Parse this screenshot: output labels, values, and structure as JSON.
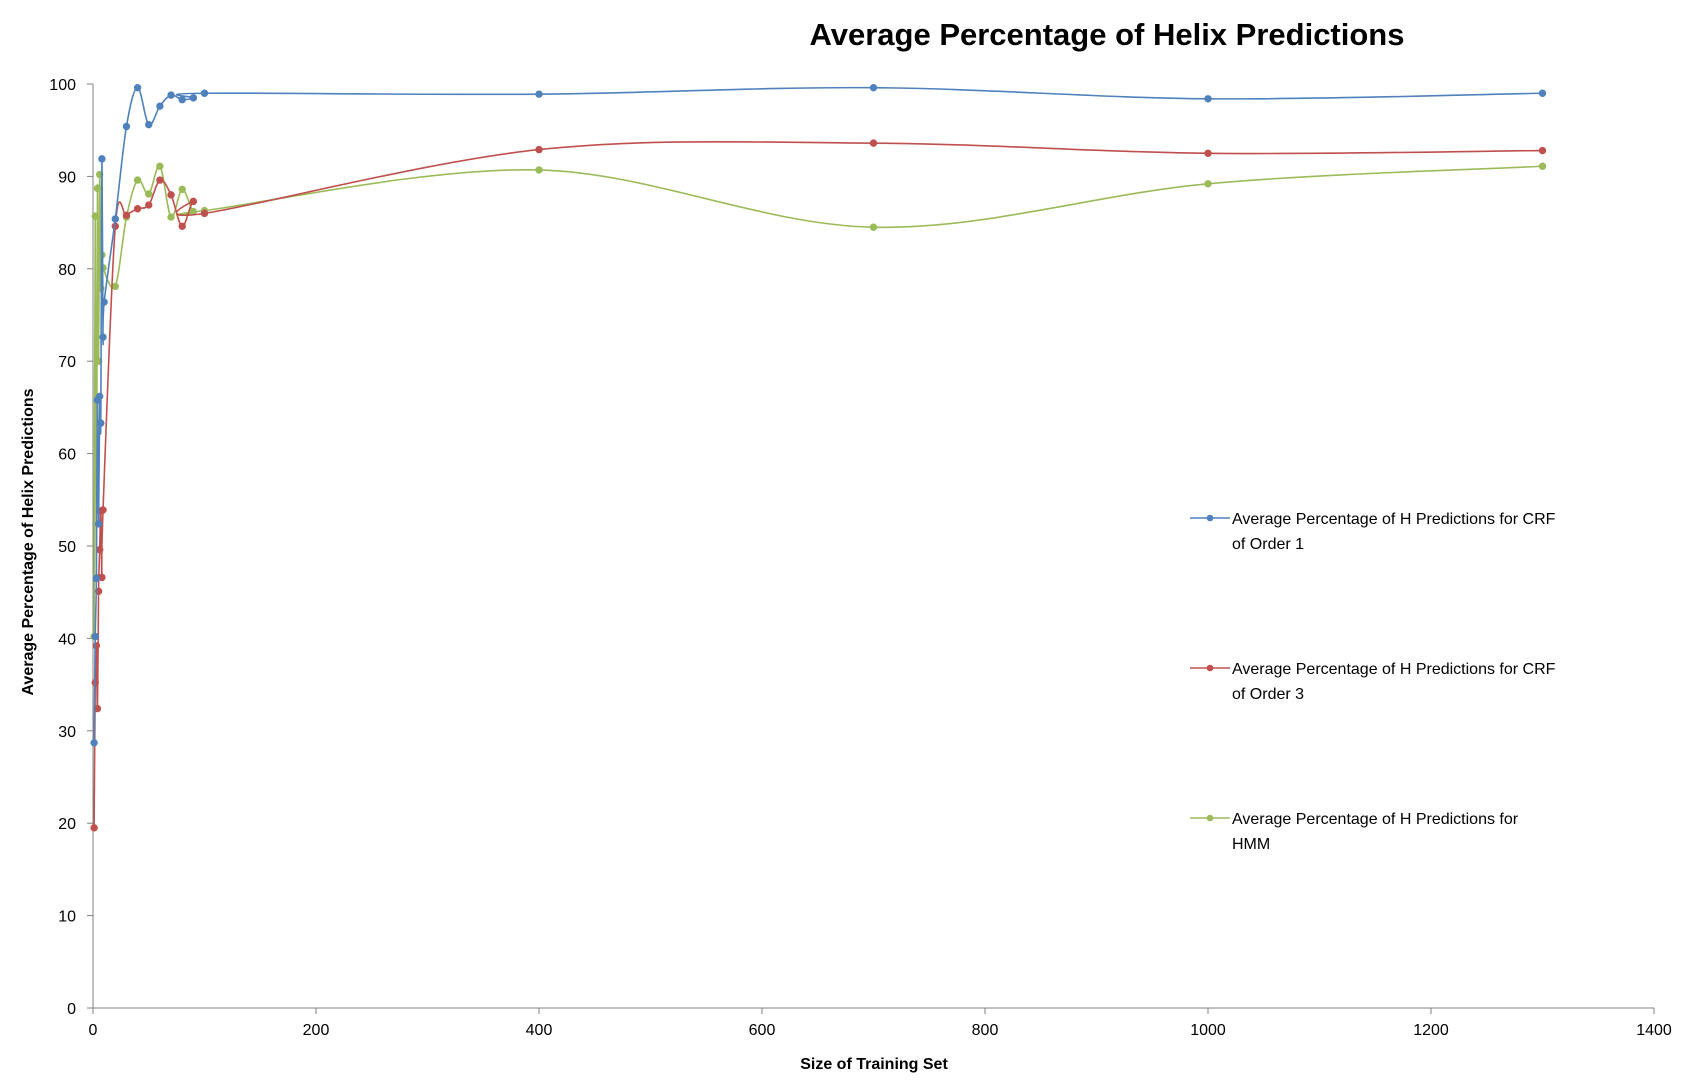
{
  "chart_data": {
    "type": "line",
    "title": "Average Percentage of Helix Predictions",
    "xlabel": "Size of Training Set",
    "ylabel": "Average Percentage of Helix Predictions",
    "xlim": [
      0,
      1400
    ],
    "ylim": [
      0,
      100
    ],
    "xticks": [
      "0",
      "200",
      "400",
      "600",
      "800",
      "1000",
      "1200",
      "1400"
    ],
    "yticks": [
      "0",
      "10",
      "20",
      "30",
      "40",
      "50",
      "60",
      "70",
      "80",
      "90",
      "100"
    ],
    "grid": false,
    "smooth": true,
    "legend_position": "right",
    "series": [
      {
        "name": "Average Percentage of H Predictions for CRF of Order 1",
        "name_lines": [
          "Average Percentage of H Predictions for CRF",
          "of Order 1"
        ],
        "color": "#4f81bd",
        "points": [
          [
            1,
            28.7
          ],
          [
            2,
            40.2
          ],
          [
            3,
            46.5
          ],
          [
            4,
            65.8
          ],
          [
            5,
            52.4
          ],
          [
            6,
            66.2
          ],
          [
            7,
            63.3
          ],
          [
            8,
            91.9
          ],
          [
            9,
            72.6
          ],
          [
            10,
            76.4
          ],
          [
            20,
            85.4
          ],
          [
            30,
            95.4
          ],
          [
            40,
            99.6
          ],
          [
            50,
            95.6
          ],
          [
            60,
            97.6
          ],
          [
            70,
            98.8
          ],
          [
            80,
            98.3
          ],
          [
            90,
            98.5
          ],
          [
            100,
            99.0
          ],
          [
            400,
            98.9
          ],
          [
            700,
            99.6
          ],
          [
            1000,
            98.4
          ],
          [
            1300,
            99.0
          ]
        ]
      },
      {
        "name": "Average Percentage of H Predictions for CRF of Order 3",
        "name_lines": [
          "Average Percentage of H Predictions for CRF",
          "of Order 3"
        ],
        "color": "#c0504d",
        "points": [
          [
            1,
            19.5
          ],
          [
            2,
            35.2
          ],
          [
            3,
            39.2
          ],
          [
            4,
            32.4
          ],
          [
            5,
            45.1
          ],
          [
            6,
            49.6
          ],
          [
            7,
            53.8
          ],
          [
            8,
            46.6
          ],
          [
            9,
            53.9
          ],
          [
            20,
            84.6
          ],
          [
            30,
            85.8
          ],
          [
            40,
            86.5
          ],
          [
            50,
            86.9
          ],
          [
            60,
            89.6
          ],
          [
            70,
            88.0
          ],
          [
            80,
            84.6
          ],
          [
            90,
            87.3
          ],
          [
            100,
            86.0
          ],
          [
            400,
            92.9
          ],
          [
            700,
            93.6
          ],
          [
            1000,
            92.5
          ],
          [
            1300,
            92.8
          ]
        ]
      },
      {
        "name": "Average Percentage of H Predictions for HMM",
        "name_lines": [
          "Average Percentage of H Predictions for",
          "HMM"
        ],
        "color": "#9bbb59",
        "points": [
          [
            1,
            40.2
          ],
          [
            2,
            85.7
          ],
          [
            3,
            46.6
          ],
          [
            4,
            88.7
          ],
          [
            5,
            70.0
          ],
          [
            6,
            90.2
          ],
          [
            7,
            77.9
          ],
          [
            8,
            81.5
          ],
          [
            9,
            80.1
          ],
          [
            20,
            78.1
          ],
          [
            30,
            85.6
          ],
          [
            40,
            89.6
          ],
          [
            50,
            88.1
          ],
          [
            60,
            91.1
          ],
          [
            70,
            85.6
          ],
          [
            80,
            88.6
          ],
          [
            90,
            86.2
          ],
          [
            100,
            86.3
          ],
          [
            400,
            90.7
          ],
          [
            700,
            84.5
          ],
          [
            1000,
            89.2
          ],
          [
            1300,
            91.1
          ]
        ]
      }
    ]
  }
}
